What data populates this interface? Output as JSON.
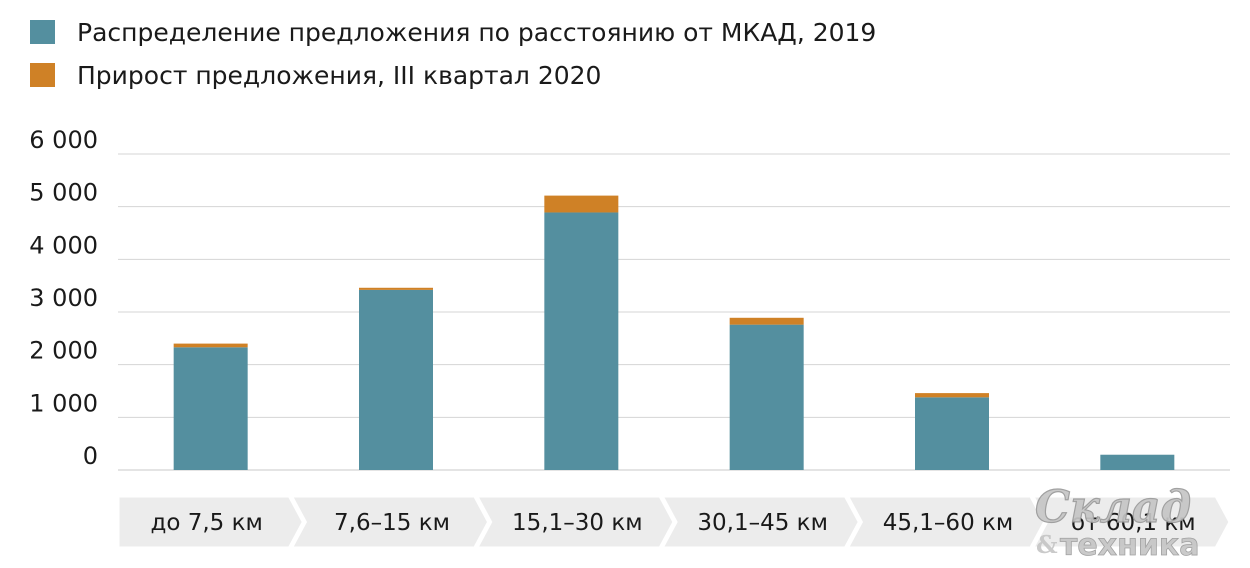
{
  "chart_data": {
    "type": "bar",
    "stacked": true,
    "categories": [
      "до 7,5 км",
      "7,6–15 км",
      "15,1–30 км",
      "30,1–45 км",
      "45,1–60 км",
      "от 60,1 км"
    ],
    "series": [
      {
        "name": "Распределение предложения по расстоянию от МКАД, 2019",
        "color": "#548f9f",
        "values": [
          2330,
          3420,
          4890,
          2760,
          1380,
          290
        ]
      },
      {
        "name": "Прирост предложения, III квартал 2020",
        "color": "#cf8126",
        "values": [
          70,
          40,
          320,
          130,
          80,
          0
        ]
      }
    ],
    "ylim": [
      0,
      6000
    ],
    "yticks": [
      0,
      1000,
      2000,
      3000,
      4000,
      5000,
      6000
    ],
    "ytick_labels": [
      "0",
      "1 000",
      "2 000",
      "3 000",
      "4 000",
      "5 000",
      "6 000"
    ],
    "grid": true,
    "legend_position": "top-left",
    "xlabel": "",
    "ylabel": ""
  },
  "watermark": {
    "line1": "Склад",
    "amp": "&",
    "line2": "техника"
  }
}
